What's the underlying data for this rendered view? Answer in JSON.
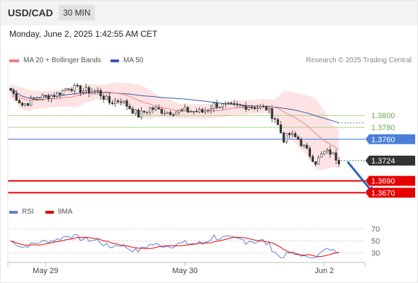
{
  "header": {
    "symbol": "USD/CAD",
    "interval": "30 MIN",
    "datetime": "Monday, June 2, 2025 1:42:55 AM CET"
  },
  "legend": {
    "ma20_label": "MA 20 + Bollinger Bands",
    "ma50_label": "MA 50",
    "credit": "Research © 2025 Trading Central"
  },
  "rsi_legend": {
    "rsi_label": "RSI",
    "ma9_label": "9MA"
  },
  "colors": {
    "ma20": "#f08080",
    "bollinger_fill": "#fde0e0",
    "ma50": "#3b5aa8",
    "candle": "#333333",
    "resistance": "#a6cf8a",
    "pivot": "#4a7fd8",
    "support": "#e60000",
    "current_price": "#333333",
    "rsi": "#5b7fd6",
    "rsi_ma9": "#e60000",
    "arrow": "#2a63b8"
  },
  "chart_data": {
    "type": "candlestick",
    "price_axis": {
      "range": [
        1.3655,
        1.388
      ]
    },
    "x_axis": {
      "ticks": [
        {
          "label": "May 29",
          "index": 12
        },
        {
          "label": "May 30",
          "index": 60
        },
        {
          "label": "Jun 2",
          "index": 108
        }
      ],
      "candle_count": 114
    },
    "levels": [
      {
        "label": "1.3800",
        "value": 1.38,
        "kind": "resistance",
        "boxed": false
      },
      {
        "label": "1.3780",
        "value": 1.378,
        "kind": "resistance",
        "boxed": false
      },
      {
        "label": "1.3760",
        "value": 1.376,
        "kind": "pivot",
        "boxed": true
      },
      {
        "label": "1.3724",
        "value": 1.3724,
        "kind": "current",
        "boxed": true
      },
      {
        "label": "1.3690",
        "value": 1.369,
        "kind": "support",
        "boxed": true
      },
      {
        "label": "1.3670",
        "value": 1.367,
        "kind": "support",
        "boxed": true
      }
    ],
    "forecast_arrow": {
      "from_index": 116,
      "from_price": 1.3722,
      "to_index": 125,
      "to_price": 1.3667
    },
    "rsi": {
      "range": [
        20,
        80
      ],
      "levels": [
        70,
        50,
        30
      ]
    }
  }
}
